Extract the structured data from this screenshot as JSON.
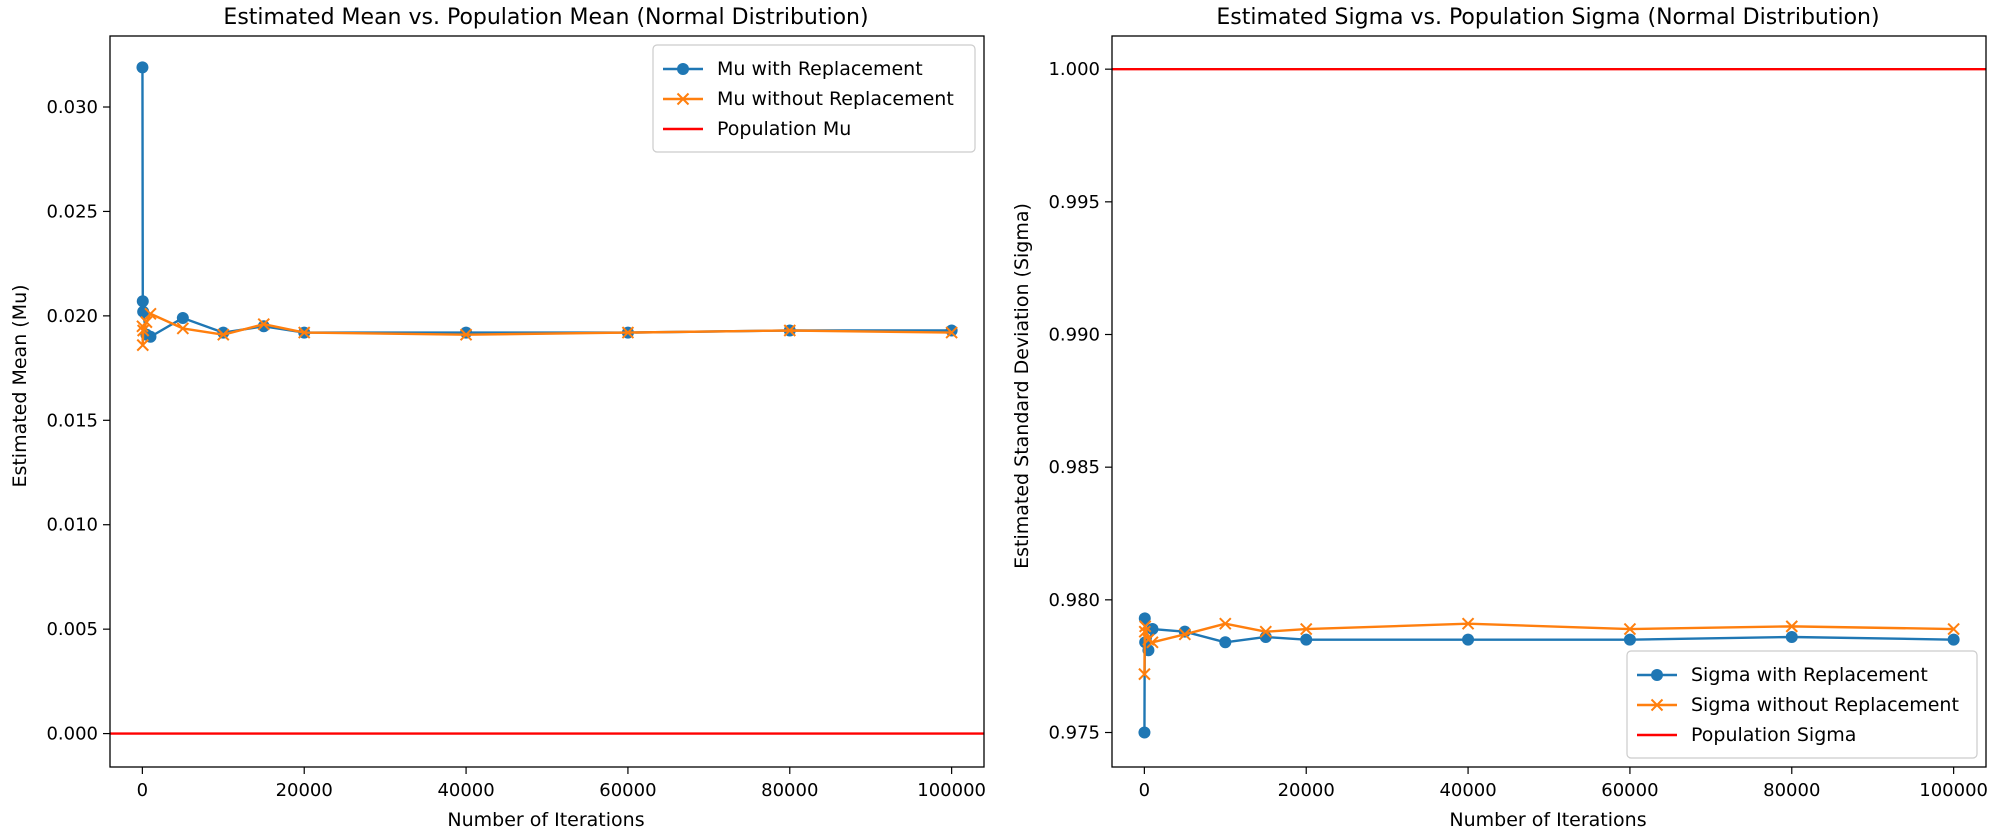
{
  "chart_data": [
    {
      "type": "line",
      "title": "Estimated Mean vs. Population Mean (Normal Distribution)",
      "xlabel": "Number of Iterations",
      "ylabel": "Estimated Mean (Mu)",
      "xlim": [
        -4000,
        104000
      ],
      "ylim": [
        -0.0016,
        0.0334
      ],
      "xticks": [
        0,
        20000,
        40000,
        60000,
        80000,
        100000
      ],
      "xtick_labels": [
        "0",
        "20000",
        "40000",
        "60000",
        "80000",
        "100000"
      ],
      "yticks": [
        0,
        0.005,
        0.01,
        0.015,
        0.02,
        0.025,
        0.03
      ],
      "ytick_labels": [
        "0.000",
        "0.005",
        "0.010",
        "0.015",
        "0.020",
        "0.025",
        "0.030"
      ],
      "grid": false,
      "legend_position": "top-right",
      "x": [
        10,
        50,
        100,
        500,
        1000,
        5000,
        10000,
        15000,
        20000,
        40000,
        60000,
        80000,
        100000
      ],
      "series": [
        {
          "name": "Mu with Replacement",
          "color": "#1f77b4",
          "marker": "circle",
          "values": [
            0.0319,
            0.0207,
            0.0202,
            0.0191,
            0.019,
            0.0199,
            0.0192,
            0.0195,
            0.0192,
            0.0192,
            0.0192,
            0.0193,
            0.0193
          ]
        },
        {
          "name": "Mu without Replacement",
          "color": "#ff7f0e",
          "marker": "x",
          "values": [
            0.0195,
            0.0186,
            0.0193,
            0.0197,
            0.0201,
            0.0194,
            0.0191,
            0.0196,
            0.0192,
            0.0191,
            0.0192,
            0.0193,
            0.0192
          ]
        }
      ],
      "reference_line": {
        "name": "Population Mu",
        "color": "#ff0000",
        "value": 0.0
      }
    },
    {
      "type": "line",
      "title": "Estimated Sigma vs. Population Sigma (Normal Distribution)",
      "xlabel": "Number of Iterations",
      "ylabel": "Estimated Standard Deviation (Sigma)",
      "xlim": [
        -4000,
        104000
      ],
      "ylim": [
        0.9737,
        1.00125
      ],
      "xticks": [
        0,
        20000,
        40000,
        60000,
        80000,
        100000
      ],
      "xtick_labels": [
        "0",
        "20000",
        "40000",
        "60000",
        "80000",
        "100000"
      ],
      "yticks": [
        0.975,
        0.98,
        0.985,
        0.99,
        0.995,
        1.0
      ],
      "ytick_labels": [
        "0.975",
        "0.980",
        "0.985",
        "0.990",
        "0.995",
        "1.000"
      ],
      "grid": false,
      "legend_position": "bottom-right",
      "x": [
        10,
        50,
        100,
        500,
        1000,
        5000,
        10000,
        15000,
        20000,
        40000,
        60000,
        80000,
        100000
      ],
      "series": [
        {
          "name": "Sigma with Replacement",
          "color": "#1f77b4",
          "marker": "circle",
          "values": [
            0.975,
            0.9793,
            0.9784,
            0.9781,
            0.9789,
            0.9788,
            0.9784,
            0.9786,
            0.9785,
            0.9785,
            0.9785,
            0.9786,
            0.9785
          ]
        },
        {
          "name": "Sigma without Replacement",
          "color": "#ff7f0e",
          "marker": "x",
          "values": [
            0.9772,
            0.9788,
            0.979,
            0.9785,
            0.9784,
            0.9787,
            0.9791,
            0.9788,
            0.9789,
            0.9791,
            0.9789,
            0.979,
            0.9789
          ]
        }
      ],
      "reference_line": {
        "name": "Population Sigma",
        "color": "#ff0000",
        "value": 1.0
      }
    }
  ]
}
